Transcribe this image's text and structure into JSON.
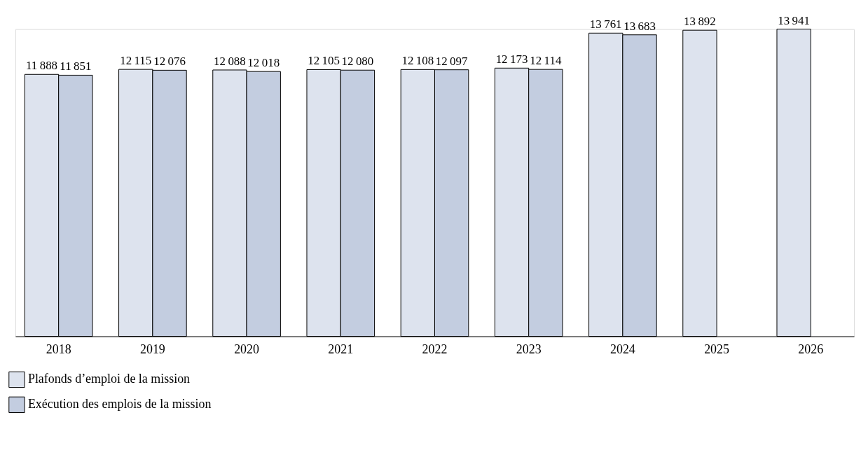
{
  "chart_data": {
    "type": "bar",
    "categories": [
      "2018",
      "2019",
      "2020",
      "2021",
      "2022",
      "2023",
      "2024",
      "2025",
      "2026"
    ],
    "series": [
      {
        "name": "Plafonds d’emploi de la mission",
        "color": "#dde3ee",
        "values": [
          11888,
          12115,
          12088,
          12105,
          12108,
          12173,
          13761,
          13892,
          13941
        ]
      },
      {
        "name": "Exécution des emplois de la mission",
        "color": "#c3cde0",
        "values": [
          11851,
          12076,
          12018,
          12080,
          12097,
          12114,
          13683,
          null,
          null
        ]
      }
    ],
    "data_labels": true,
    "legend": "bottom left",
    "grid": false
  }
}
